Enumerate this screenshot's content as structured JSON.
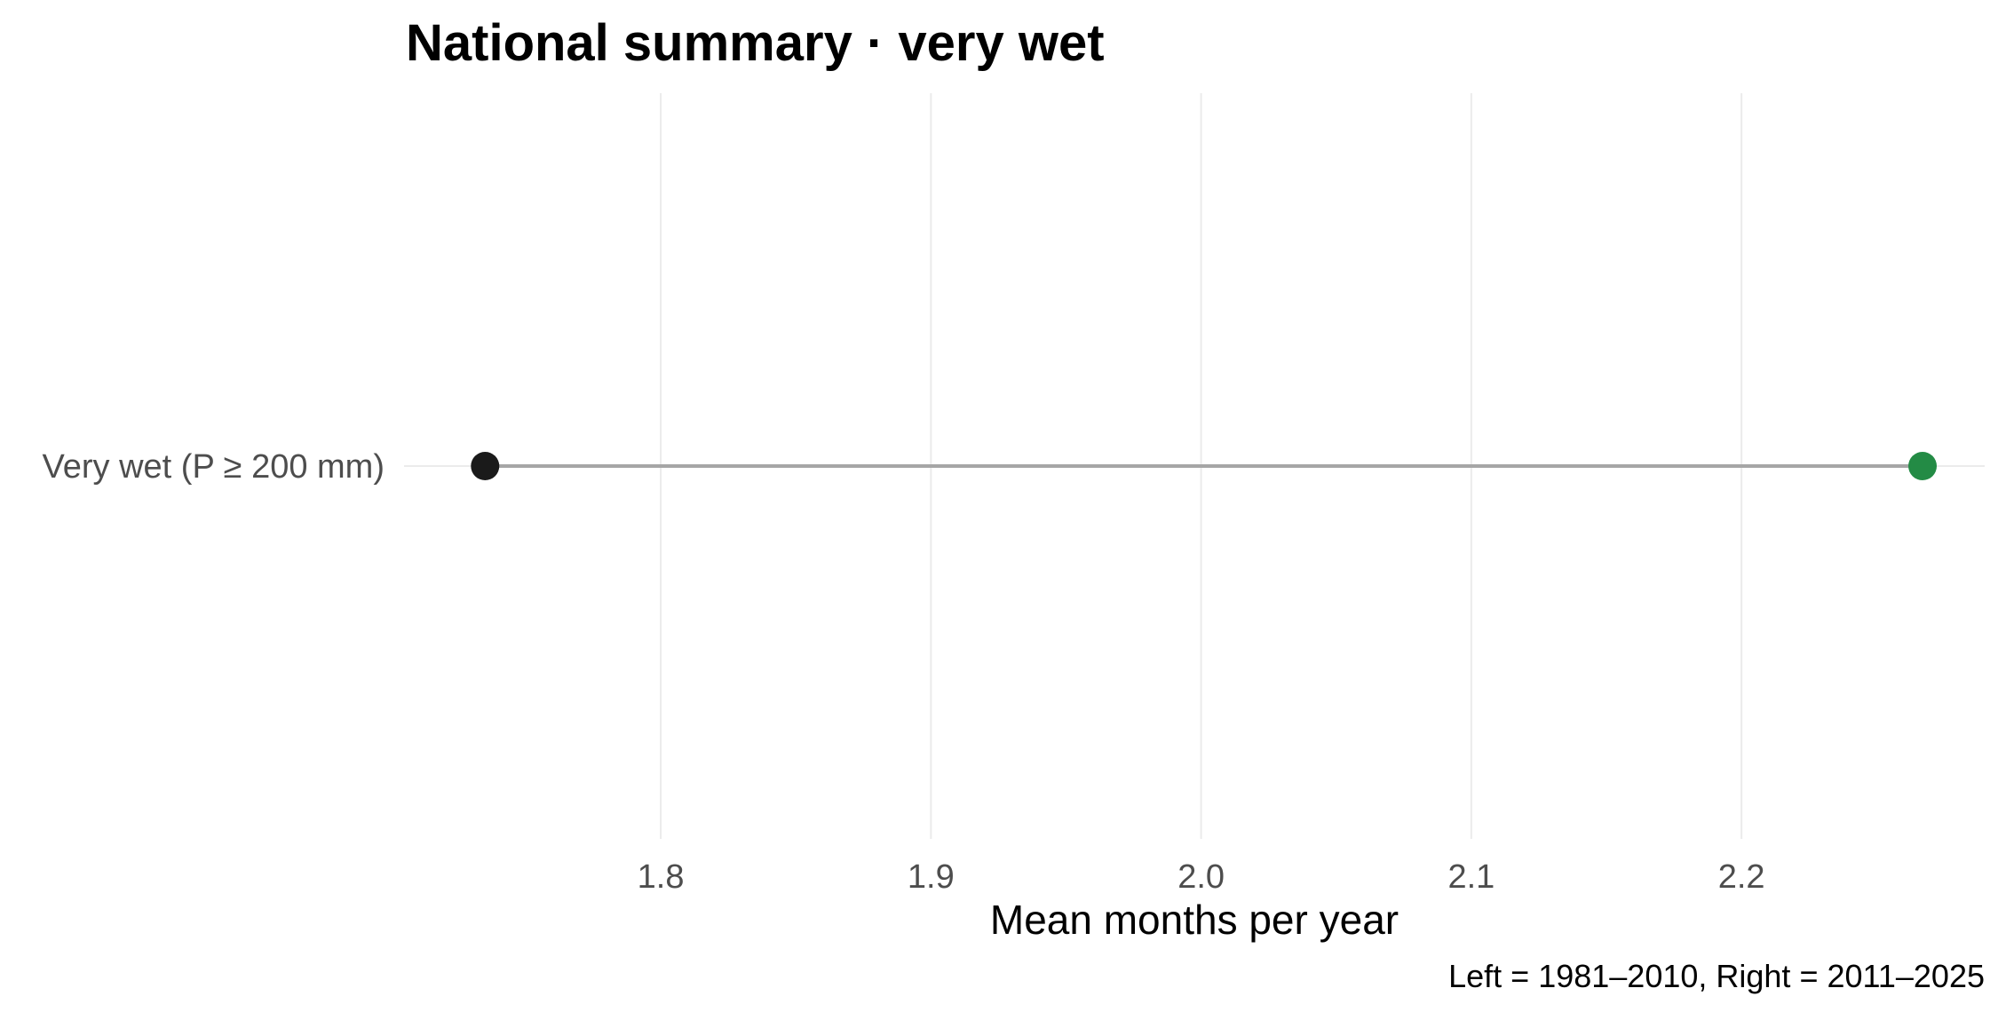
{
  "chart_data": {
    "type": "dumbbell",
    "title": "National summary · very wet",
    "xlabel": "Mean months per year",
    "ylabel": "",
    "caption": "Left = 1981–2010, Right = 2011–2025",
    "categories": [
      "Very wet (P ≥ 200 mm)"
    ],
    "series": [
      {
        "period": "1981–2010",
        "values": [
          1.735
        ],
        "color": "#1a1a1a"
      },
      {
        "period": "2011–2025",
        "values": [
          2.267
        ],
        "color": "#238b45"
      }
    ],
    "xlim": [
      1.705,
      2.29
    ],
    "xticks": [
      1.8,
      1.9,
      2.0,
      2.1,
      2.2
    ],
    "xtick_labels": [
      "1.8",
      "1.9",
      "2.0",
      "2.1",
      "2.2"
    ],
    "segment_color": "#a6a6a6",
    "grid": true,
    "legend": "none"
  }
}
